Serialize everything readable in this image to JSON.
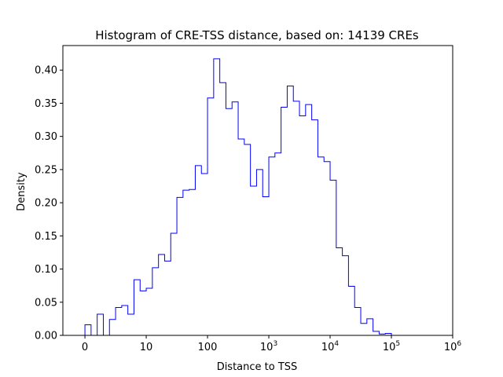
{
  "chart_data": {
    "type": "histogram",
    "title": "Histogram of CRE-TSS distance, based on: 14139 CREs",
    "xlabel": "Distance to TSS",
    "ylabel": "Density",
    "x_scale": "symlog",
    "xlim": [
      -0.36,
      6
    ],
    "ylim": [
      0,
      0.437
    ],
    "line_color": "#0000ff",
    "grid": false,
    "x_ticks": [
      {
        "pos": 0,
        "base": "0",
        "exp": ""
      },
      {
        "pos": 1,
        "base": "10",
        "exp": ""
      },
      {
        "pos": 2,
        "base": "100",
        "exp": ""
      },
      {
        "pos": 3,
        "base": "10",
        "exp": "3"
      },
      {
        "pos": 4,
        "base": "10",
        "exp": "4"
      },
      {
        "pos": 5,
        "base": "10",
        "exp": "5"
      },
      {
        "pos": 6,
        "base": "10",
        "exp": "6"
      }
    ],
    "y_ticks": [
      "0.00",
      "0.05",
      "0.10",
      "0.15",
      "0.20",
      "0.25",
      "0.30",
      "0.35",
      "0.40"
    ],
    "bin_start": 0,
    "bin_width": 0.1,
    "values": [
      0.016,
      0.0,
      0.032,
      0.0,
      0.024,
      0.042,
      0.045,
      0.032,
      0.084,
      0.067,
      0.071,
      0.102,
      0.122,
      0.112,
      0.154,
      0.208,
      0.219,
      0.22,
      0.256,
      0.244,
      0.358,
      0.417,
      0.381,
      0.342,
      0.352,
      0.296,
      0.288,
      0.225,
      0.25,
      0.209,
      0.269,
      0.275,
      0.344,
      0.376,
      0.353,
      0.331,
      0.348,
      0.325,
      0.269,
      0.262,
      0.234,
      0.132,
      0.12,
      0.074,
      0.042,
      0.018,
      0.025,
      0.006,
      0.002,
      0.003
    ]
  }
}
